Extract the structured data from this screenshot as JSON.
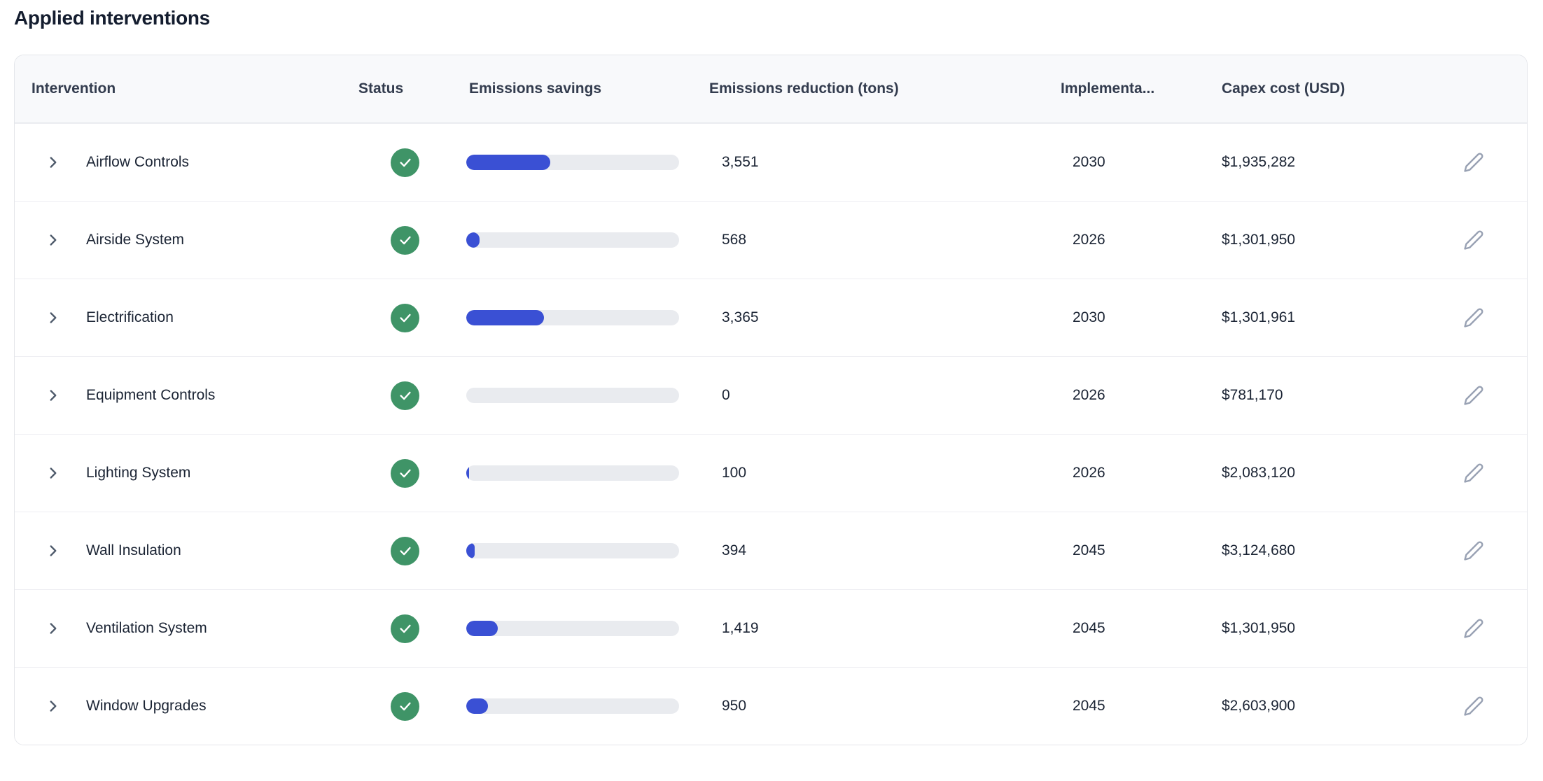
{
  "page": {
    "title": "Applied interventions"
  },
  "table": {
    "headers": {
      "intervention": "Intervention",
      "status": "Status",
      "emissions_savings": "Emissions savings",
      "emissions_reduction": "Emissions reduction (tons)",
      "implementation_year": "Implementa...",
      "capex_cost": "Capex cost (USD)"
    },
    "colors": {
      "accent_blue": "#3a50d4",
      "bar_track": "#e9ebef",
      "status_green": "#3f9467",
      "icon_gray": "#98a1b3"
    },
    "icons": {
      "expand": "chevron-right-icon",
      "status": "check-circle-icon",
      "edit": "pencil-icon"
    },
    "rows": [
      {
        "name": "Airflow Controls",
        "status": "complete",
        "savings_percent": 39.5,
        "reduction": "3,551",
        "year": "2030",
        "capex": "$1,935,282"
      },
      {
        "name": "Airside System",
        "status": "complete",
        "savings_percent": 6.3,
        "reduction": "568",
        "year": "2026",
        "capex": "$1,301,950"
      },
      {
        "name": "Electrification",
        "status": "complete",
        "savings_percent": 36.6,
        "reduction": "3,365",
        "year": "2030",
        "capex": "$1,301,961"
      },
      {
        "name": "Equipment Controls",
        "status": "complete",
        "savings_percent": 0,
        "reduction": "0",
        "year": "2026",
        "capex": "$781,170"
      },
      {
        "name": "Lighting System",
        "status": "complete",
        "savings_percent": 1.3,
        "reduction": "100",
        "year": "2026",
        "capex": "$2,083,120"
      },
      {
        "name": "Wall Insulation",
        "status": "complete",
        "savings_percent": 4.0,
        "reduction": "394",
        "year": "2045",
        "capex": "$3,124,680"
      },
      {
        "name": "Ventilation System",
        "status": "complete",
        "savings_percent": 14.8,
        "reduction": "1,419",
        "year": "2045",
        "capex": "$1,301,950"
      },
      {
        "name": "Window Upgrades",
        "status": "complete",
        "savings_percent": 10.2,
        "reduction": "950",
        "year": "2045",
        "capex": "$2,603,900"
      }
    ]
  }
}
